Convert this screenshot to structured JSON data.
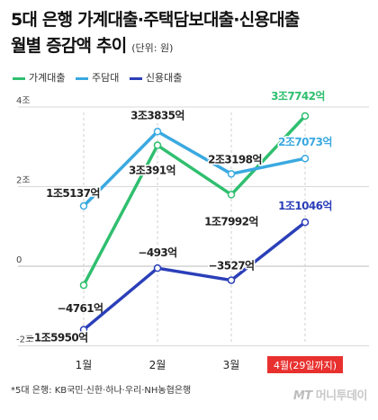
{
  "title": {
    "line1": "5대 은행 가계대출·주택담보대출·신용대출",
    "line2": "월별 증감액 추이",
    "unit": "(단위: 원)"
  },
  "colors": {
    "green": "#2fbf6f",
    "skyblue": "#3aa9e0",
    "navy": "#2b3fb8",
    "highlight": "#e8312f",
    "grid": "#d9d9d9",
    "dash": "#cfcfcf"
  },
  "chart_data": {
    "type": "line",
    "categories": [
      "1월",
      "2월",
      "3월",
      "4월(29일까지)"
    ],
    "highlight_category": 3,
    "yticks": [
      {
        "value": 40000,
        "label": "4조"
      },
      {
        "value": 20000,
        "label": "2조"
      },
      {
        "value": 0,
        "label": "0"
      },
      {
        "value": -20000,
        "label": "-2조"
      }
    ],
    "ylim": [
      -20000,
      40000
    ],
    "unit": "억 원",
    "series": [
      {
        "name": "가계대출",
        "color": "#2fbf6f",
        "values": [
          -4761,
          30391,
          17992,
          37742
        ],
        "labels": [
          "−4761억",
          "3조391억",
          "1조7992억",
          "3조7742억"
        ]
      },
      {
        "name": "주담대",
        "color": "#3aa9e0",
        "values": [
          15137,
          33835,
          23198,
          27073
        ],
        "labels": [
          "1조5137억",
          "3조3835억",
          "2조3198억",
          "2조7073억"
        ]
      },
      {
        "name": "신용대출",
        "color": "#2b3fb8",
        "values": [
          -15950,
          -493,
          -3527,
          11046
        ],
        "labels": [
          "−1조5950억",
          "−493억",
          "−3527억",
          "1조1046억"
        ]
      }
    ]
  },
  "footnote": "*5대 은행: KB국민·신한·하나·우리·NH농협은행",
  "logo": {
    "mark": "MT",
    "text": "머니투데이"
  }
}
